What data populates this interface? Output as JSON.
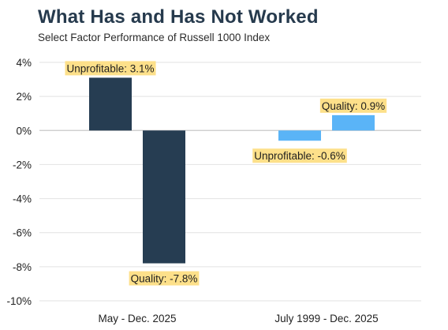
{
  "title": "What Has and Has Not Worked",
  "subtitle": "Select Factor Performance of Russell 1000 Index",
  "colors": {
    "dark_bar": "#263d52",
    "light_bar": "#5ab4f7",
    "label_bg": "#fde08a",
    "grid": "#e2e2e2",
    "zero_line": "#c8c8c8"
  },
  "chart_data": {
    "type": "bar",
    "title": "What Has and Has Not Worked",
    "subtitle": "Select Factor Performance of Russell 1000 Index",
    "categories": [
      "May - Dec. 2025",
      "July 1999 - Dec. 2025"
    ],
    "series": [
      {
        "name": "Unprofitable",
        "values": [
          3.1,
          -0.6
        ]
      },
      {
        "name": "Quality",
        "values": [
          -7.8,
          0.9
        ]
      }
    ],
    "data_labels": [
      [
        "Unprofitable: 3.1%",
        "Quality: -7.8%"
      ],
      [
        "Unprofitable: -0.6%",
        "Quality: 0.9%"
      ]
    ],
    "ylim": [
      -10,
      4
    ],
    "yticks": [
      4,
      2,
      0,
      -2,
      -4,
      -6,
      -8,
      -10
    ],
    "ytick_labels": [
      "4%",
      "2%",
      "0%",
      "-2%",
      "-4%",
      "-6%",
      "-8%",
      "-10%"
    ],
    "grid": true,
    "legend": "none"
  }
}
